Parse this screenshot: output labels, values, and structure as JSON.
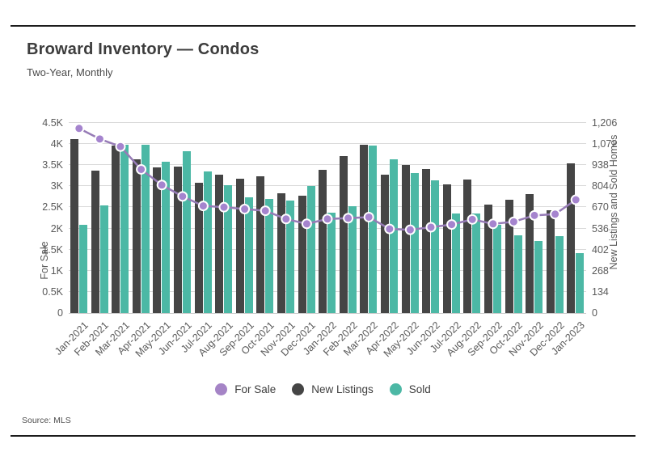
{
  "header": {
    "title": "Broward Inventory — Condos",
    "subtitle": "Two-Year, Monthly"
  },
  "source": "Source: MLS",
  "legend": [
    {
      "label": "For Sale",
      "color": "#a584c6"
    },
    {
      "label": "New Listings",
      "color": "#454545"
    },
    {
      "label": "Sold",
      "color": "#4cb8a5"
    }
  ],
  "chart_data": {
    "type": "bar",
    "title": "Broward Inventory — Condos",
    "subtitle": "Two-Year, Monthly",
    "grid": true,
    "categories": [
      "Jan-2021",
      "Feb-2021",
      "Mar-2021",
      "Apr-2021",
      "May-2021",
      "Jun-2021",
      "Jul-2021",
      "Aug-2021",
      "Sep-2021",
      "Oct-2021",
      "Nov-2021",
      "Dec-2021",
      "Jan-2022",
      "Feb-2022",
      "Mar-2022",
      "Apr-2022",
      "May-2022",
      "Jun-2022",
      "Jul-2022",
      "Aug-2022",
      "Sep-2022",
      "Oct-2022",
      "Nov-2022",
      "Dec-2022",
      "Jan-2023"
    ],
    "series": [
      {
        "name": "For Sale",
        "type": "line",
        "axis": "left",
        "color": "#967bb6",
        "marker_color": "#a584ce",
        "values": [
          4370,
          4120,
          3940,
          3400,
          3030,
          2760,
          2535,
          2505,
          2460,
          2420,
          2225,
          2110,
          2225,
          2245,
          2270,
          1990,
          1970,
          2030,
          2095,
          2215,
          2110,
          2160,
          2310,
          2340,
          2680
        ]
      },
      {
        "name": "New Listings",
        "type": "bar",
        "axis": "right",
        "color": "#454545",
        "values": [
          1105,
          905,
          1060,
          975,
          925,
          930,
          825,
          880,
          850,
          865,
          760,
          745,
          910,
          995,
          1065,
          880,
          940,
          915,
          815,
          845,
          690,
          720,
          755,
          650,
          950
        ]
      },
      {
        "name": "Sold",
        "type": "bar",
        "axis": "right",
        "color": "#4cb8a5",
        "values": [
          560,
          685,
          1065,
          1070,
          960,
          1025,
          900,
          810,
          735,
          725,
          715,
          805,
          635,
          675,
          1060,
          975,
          890,
          840,
          630,
          630,
          560,
          495,
          455,
          490,
          380
        ]
      }
    ],
    "left_axis": {
      "label": "For Sale",
      "max": 4500,
      "ticks": [
        "0",
        "0.5K",
        "1K",
        "1.5K",
        "2K",
        "2.5K",
        "3K",
        "3.5K",
        "4K",
        "4.5K"
      ]
    },
    "right_axis": {
      "label": "New Listings and Sold Homes",
      "max": 1206,
      "ticks": [
        "0",
        "134",
        "268",
        "402",
        "536",
        "670",
        "804",
        "938",
        "1,072",
        "1,206"
      ]
    },
    "legend_position": "bottom"
  }
}
